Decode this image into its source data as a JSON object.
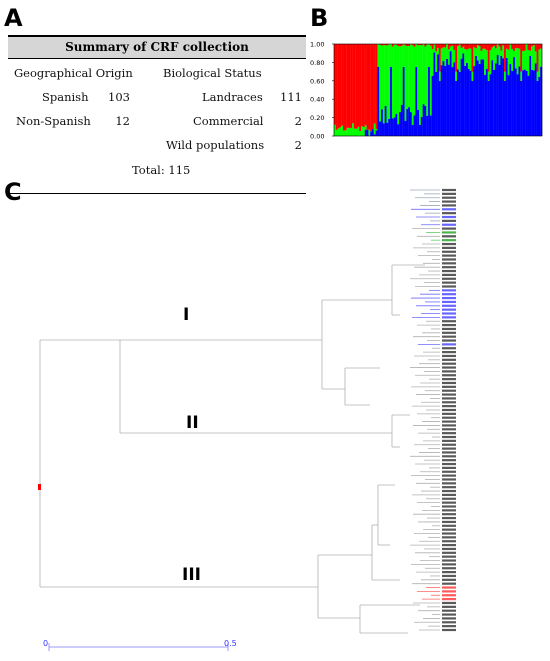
{
  "panels": {
    "a": "A",
    "b": "B",
    "c": "C"
  },
  "table": {
    "title": "Summary of CRF collection",
    "col1_header": "Geographical Origin",
    "col2_header": "Biological Status",
    "rows_left": [
      {
        "label": "Spanish",
        "value": "103"
      },
      {
        "label": "Non-Spanish",
        "value": "12"
      }
    ],
    "rows_right": [
      {
        "label": "Landraces",
        "value": "111"
      },
      {
        "label": "Commercial",
        "value": "2"
      },
      {
        "label": "Wild populations",
        "value": "2"
      }
    ],
    "total": "Total: 115"
  },
  "structure": {
    "y_ticks": [
      "1.00",
      "0.80",
      "0.60",
      "0.40",
      "0.20",
      "0.00"
    ],
    "colors": {
      "red": "#ff0000",
      "green": "#00ff00",
      "blue": "#0000ff"
    }
  },
  "chart_data": {
    "type": "dendrogram",
    "clusters": [
      "I",
      "II",
      "III"
    ],
    "scale_start": "0",
    "scale_end": "0.5",
    "leaf_count": 115
  }
}
